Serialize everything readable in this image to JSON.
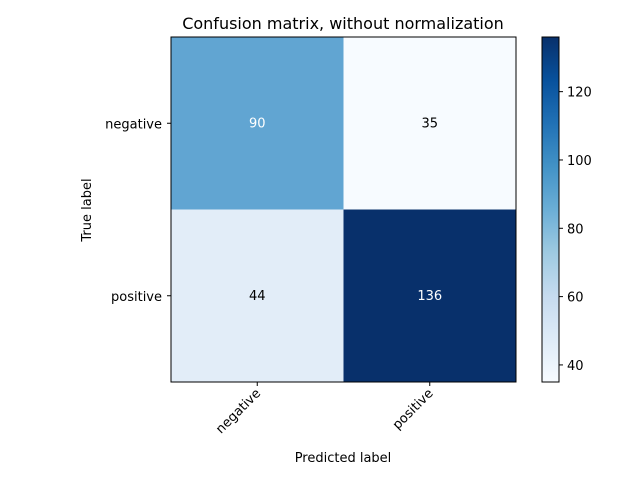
{
  "chart_data": {
    "type": "heatmap",
    "title": "Confusion matrix, without normalization",
    "xlabel": "Predicted label",
    "ylabel": "True label",
    "x_categories": [
      "negative",
      "positive"
    ],
    "y_categories": [
      "negative",
      "positive"
    ],
    "values": [
      [
        90,
        35
      ],
      [
        44,
        136
      ]
    ],
    "colormap": "Blues",
    "value_range": [
      35,
      136
    ],
    "colorbar_ticks": [
      40,
      60,
      80,
      100,
      120
    ],
    "grid": false,
    "colors": {
      "cells": [
        [
          "#61a5d2",
          "#f7fbff"
        ],
        [
          "#e2edf8",
          "#08306b"
        ]
      ],
      "text_light": "#ffffff",
      "text_dark": "#000000"
    }
  }
}
